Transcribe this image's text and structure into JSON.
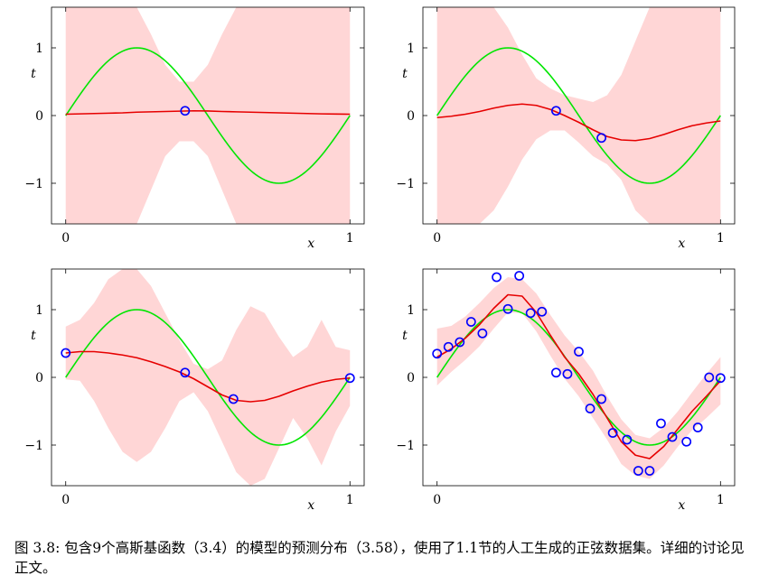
{
  "caption": "图 3.8: 包含9个高斯基函数（3.4）的模型的预测分布（3.58），使用了1.1节的人工生成的正弦数据集。详细的讨论见正文。",
  "colors": {
    "band": "#ffd6d6",
    "mean": "#e60000",
    "truth": "#00e600",
    "points": "#0000ff",
    "frame": "#000000"
  },
  "chart_data": [
    {
      "type": "line",
      "xlabel": "x",
      "ylabel": "t",
      "xlim": [
        -0.05,
        1.05
      ],
      "ylim": [
        -1.6,
        1.6
      ],
      "xticks": [
        {
          "v": 0,
          "label": "0"
        },
        {
          "v": 1,
          "label": "1"
        }
      ],
      "yticks": [
        {
          "v": 1,
          "label": "1"
        },
        {
          "v": 0,
          "label": "0"
        },
        {
          "v": -1,
          "label": "−1"
        }
      ],
      "series": [
        {
          "role": "mean",
          "x": [
            0,
            0.05,
            0.1,
            0.15,
            0.2,
            0.25,
            0.3,
            0.35,
            0.4,
            0.45,
            0.5,
            0.55,
            0.6,
            0.65,
            0.7,
            0.75,
            0.8,
            0.85,
            0.9,
            0.95,
            1.0
          ],
          "y": [
            0.02,
            0.025,
            0.03,
            0.035,
            0.04,
            0.05,
            0.055,
            0.06,
            0.065,
            0.07,
            0.068,
            0.06,
            0.055,
            0.05,
            0.045,
            0.04,
            0.035,
            0.03,
            0.025,
            0.022,
            0.02
          ]
        },
        {
          "role": "band",
          "x": [
            0,
            0.05,
            0.1,
            0.15,
            0.2,
            0.25,
            0.3,
            0.35,
            0.4,
            0.45,
            0.5,
            0.55,
            0.6,
            0.65,
            0.7,
            0.75,
            0.8,
            0.85,
            0.9,
            0.95,
            1.0
          ],
          "upper": [
            1.6,
            1.6,
            1.6,
            1.6,
            1.6,
            1.6,
            1.2,
            0.75,
            0.5,
            0.5,
            0.75,
            1.2,
            1.6,
            1.6,
            1.6,
            1.6,
            1.6,
            1.6,
            1.6,
            1.6,
            1.6
          ],
          "lower": [
            -1.6,
            -1.6,
            -1.6,
            -1.6,
            -1.6,
            -1.6,
            -1.1,
            -0.6,
            -0.38,
            -0.38,
            -0.6,
            -1.1,
            -1.6,
            -1.6,
            -1.6,
            -1.6,
            -1.6,
            -1.6,
            -1.6,
            -1.6,
            -1.6
          ]
        }
      ],
      "points": {
        "x": [
          0.42
        ],
        "y": [
          0.07
        ]
      }
    },
    {
      "type": "line",
      "xlabel": "x",
      "ylabel": "t",
      "xlim": [
        -0.05,
        1.05
      ],
      "ylim": [
        -1.6,
        1.6
      ],
      "xticks": [
        {
          "v": 0,
          "label": "0"
        },
        {
          "v": 1,
          "label": "1"
        }
      ],
      "yticks": [
        {
          "v": 1,
          "label": "1"
        },
        {
          "v": 0,
          "label": "0"
        },
        {
          "v": -1,
          "label": "−1"
        }
      ],
      "series": [
        {
          "role": "mean",
          "x": [
            0,
            0.05,
            0.1,
            0.15,
            0.2,
            0.25,
            0.3,
            0.35,
            0.4,
            0.45,
            0.5,
            0.55,
            0.6,
            0.65,
            0.7,
            0.75,
            0.8,
            0.85,
            0.9,
            0.95,
            1.0
          ],
          "y": [
            -0.03,
            -0.01,
            0.02,
            0.06,
            0.11,
            0.15,
            0.17,
            0.15,
            0.09,
            0.0,
            -0.1,
            -0.21,
            -0.31,
            -0.36,
            -0.37,
            -0.34,
            -0.28,
            -0.21,
            -0.15,
            -0.11,
            -0.08
          ]
        },
        {
          "role": "band",
          "x": [
            0,
            0.05,
            0.1,
            0.15,
            0.2,
            0.25,
            0.3,
            0.35,
            0.4,
            0.45,
            0.5,
            0.55,
            0.6,
            0.65,
            0.7,
            0.75,
            0.8,
            0.85,
            0.9,
            0.95,
            1.0
          ],
          "upper": [
            1.6,
            1.6,
            1.6,
            1.6,
            1.6,
            1.3,
            0.9,
            0.55,
            0.4,
            0.3,
            0.25,
            0.2,
            0.3,
            0.6,
            1.1,
            1.6,
            1.6,
            1.6,
            1.6,
            1.6,
            1.6
          ],
          "lower": [
            -1.6,
            -1.6,
            -1.6,
            -1.6,
            -1.4,
            -1.05,
            -0.65,
            -0.35,
            -0.22,
            -0.22,
            -0.4,
            -0.6,
            -0.72,
            -0.95,
            -1.4,
            -1.6,
            -1.6,
            -1.6,
            -1.6,
            -1.6,
            -1.6
          ]
        }
      ],
      "points": {
        "x": [
          0.42,
          0.58
        ],
        "y": [
          0.07,
          -0.33
        ]
      }
    },
    {
      "type": "line",
      "xlabel": "x",
      "ylabel": "t",
      "xlim": [
        -0.05,
        1.05
      ],
      "ylim": [
        -1.6,
        1.6
      ],
      "xticks": [
        {
          "v": 0,
          "label": "0"
        },
        {
          "v": 1,
          "label": "1"
        }
      ],
      "yticks": [
        {
          "v": 1,
          "label": "1"
        },
        {
          "v": 0,
          "label": "0"
        },
        {
          "v": -1,
          "label": "−1"
        }
      ],
      "series": [
        {
          "role": "mean",
          "x": [
            0,
            0.05,
            0.1,
            0.15,
            0.2,
            0.25,
            0.3,
            0.35,
            0.4,
            0.45,
            0.5,
            0.55,
            0.6,
            0.65,
            0.7,
            0.75,
            0.8,
            0.85,
            0.9,
            0.95,
            1.0
          ],
          "y": [
            0.36,
            0.38,
            0.38,
            0.36,
            0.33,
            0.29,
            0.23,
            0.16,
            0.08,
            -0.02,
            -0.14,
            -0.26,
            -0.34,
            -0.36,
            -0.34,
            -0.28,
            -0.2,
            -0.13,
            -0.07,
            -0.03,
            -0.01
          ]
        },
        {
          "role": "band",
          "x": [
            0,
            0.05,
            0.1,
            0.15,
            0.2,
            0.25,
            0.3,
            0.35,
            0.4,
            0.45,
            0.5,
            0.55,
            0.6,
            0.65,
            0.7,
            0.75,
            0.8,
            0.85,
            0.9,
            0.95,
            1.0
          ],
          "upper": [
            0.75,
            0.85,
            1.1,
            1.45,
            1.6,
            1.6,
            1.35,
            0.95,
            0.55,
            0.2,
            0.12,
            0.25,
            0.7,
            1.05,
            0.95,
            0.6,
            0.3,
            0.45,
            0.85,
            0.45,
            0.4
          ],
          "lower": [
            -0.03,
            -0.05,
            -0.35,
            -0.75,
            -1.1,
            -1.25,
            -1.1,
            -0.75,
            -0.35,
            -0.22,
            -0.5,
            -0.95,
            -1.4,
            -1.6,
            -1.5,
            -1.05,
            -0.6,
            -0.9,
            -1.3,
            -0.8,
            -0.42
          ]
        }
      ],
      "points": {
        "x": [
          0.0,
          0.42,
          0.59,
          1.0
        ],
        "y": [
          0.36,
          0.07,
          -0.32,
          -0.01
        ]
      }
    },
    {
      "type": "line",
      "xlabel": "x",
      "ylabel": "t",
      "xlim": [
        -0.05,
        1.05
      ],
      "ylim": [
        -1.6,
        1.6
      ],
      "xticks": [
        {
          "v": 0,
          "label": "0"
        },
        {
          "v": 1,
          "label": "1"
        }
      ],
      "yticks": [
        {
          "v": 1,
          "label": "1"
        },
        {
          "v": 0,
          "label": "0"
        },
        {
          "v": -1,
          "label": "−1"
        }
      ],
      "series": [
        {
          "role": "mean",
          "x": [
            0,
            0.05,
            0.1,
            0.15,
            0.2,
            0.25,
            0.3,
            0.35,
            0.4,
            0.45,
            0.5,
            0.55,
            0.6,
            0.65,
            0.7,
            0.75,
            0.8,
            0.85,
            0.9,
            0.95,
            1.0
          ],
          "y": [
            0.3,
            0.42,
            0.58,
            0.78,
            1.02,
            1.22,
            1.2,
            0.96,
            0.62,
            0.3,
            0.05,
            -0.25,
            -0.6,
            -0.95,
            -1.15,
            -1.2,
            -1.02,
            -0.76,
            -0.5,
            -0.28,
            -0.05
          ]
        },
        {
          "role": "band",
          "x": [
            0,
            0.05,
            0.1,
            0.15,
            0.2,
            0.25,
            0.3,
            0.35,
            0.4,
            0.45,
            0.5,
            0.55,
            0.6,
            0.65,
            0.7,
            0.75,
            0.8,
            0.85,
            0.9,
            0.95,
            1.0
          ],
          "upper": [
            0.72,
            0.76,
            0.9,
            1.1,
            1.32,
            1.48,
            1.45,
            1.24,
            0.92,
            0.62,
            0.38,
            0.1,
            -0.28,
            -0.62,
            -0.85,
            -0.9,
            -0.74,
            -0.5,
            -0.22,
            0.05,
            0.3
          ],
          "lower": [
            -0.12,
            0.08,
            0.26,
            0.46,
            0.72,
            0.96,
            0.95,
            0.68,
            0.32,
            -0.02,
            -0.28,
            -0.6,
            -0.92,
            -1.28,
            -1.45,
            -1.5,
            -1.3,
            -1.02,
            -0.78,
            -0.6,
            -0.4
          ]
        }
      ],
      "points": {
        "x": [
          0.0,
          0.04,
          0.08,
          0.12,
          0.16,
          0.21,
          0.25,
          0.29,
          0.33,
          0.37,
          0.42,
          0.46,
          0.5,
          0.54,
          0.58,
          0.62,
          0.67,
          0.71,
          0.75,
          0.79,
          0.83,
          0.88,
          0.92,
          0.96,
          1.0
        ],
        "y": [
          0.35,
          0.45,
          0.52,
          0.82,
          0.65,
          1.48,
          1.01,
          1.5,
          0.95,
          0.97,
          0.07,
          0.05,
          0.38,
          -0.46,
          -0.32,
          -0.82,
          -0.92,
          -1.38,
          -1.38,
          -0.68,
          -0.88,
          -0.95,
          -0.74,
          0.0,
          -0.01
        ]
      }
    }
  ]
}
